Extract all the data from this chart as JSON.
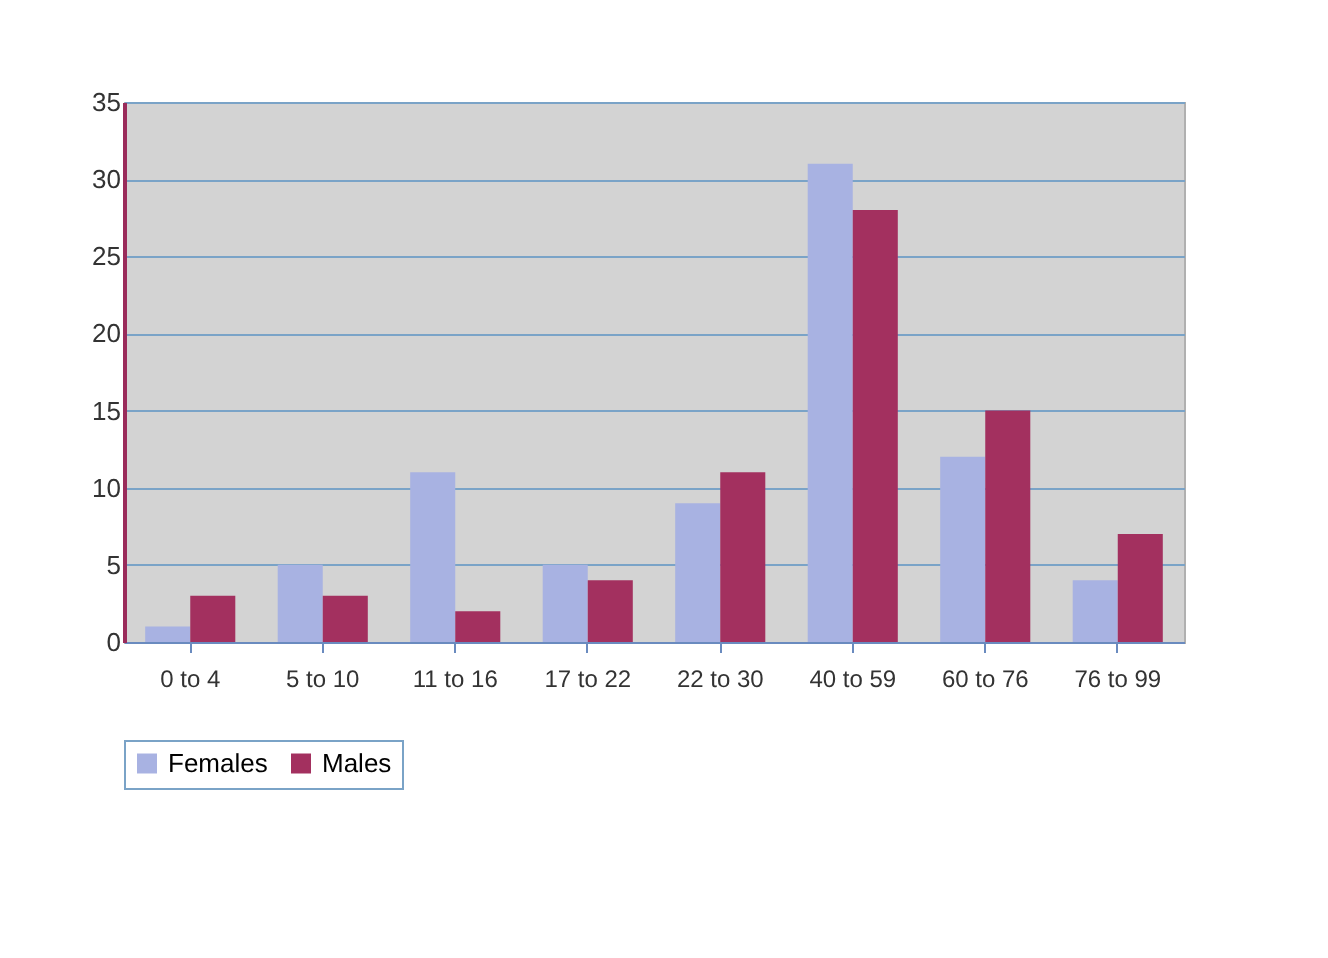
{
  "chart_data": {
    "type": "bar",
    "categories": [
      "0 to 4",
      "5 to 10",
      "11 to 16",
      "17 to 22",
      "22 to 30",
      "40 to 59",
      "60 to 76",
      "76 to 99"
    ],
    "series": [
      {
        "name": "Females",
        "color": "#a8b2e2",
        "values": [
          1,
          5,
          11,
          5,
          9,
          31,
          12,
          4
        ]
      },
      {
        "name": "Males",
        "color": "#a3305f",
        "values": [
          3,
          3,
          2,
          4,
          11,
          28,
          15,
          7
        ]
      }
    ],
    "ylim": [
      0,
      35
    ],
    "yticks": [
      0,
      5,
      10,
      15,
      20,
      25,
      30,
      35
    ],
    "grid": "y",
    "legend": "bottom"
  }
}
